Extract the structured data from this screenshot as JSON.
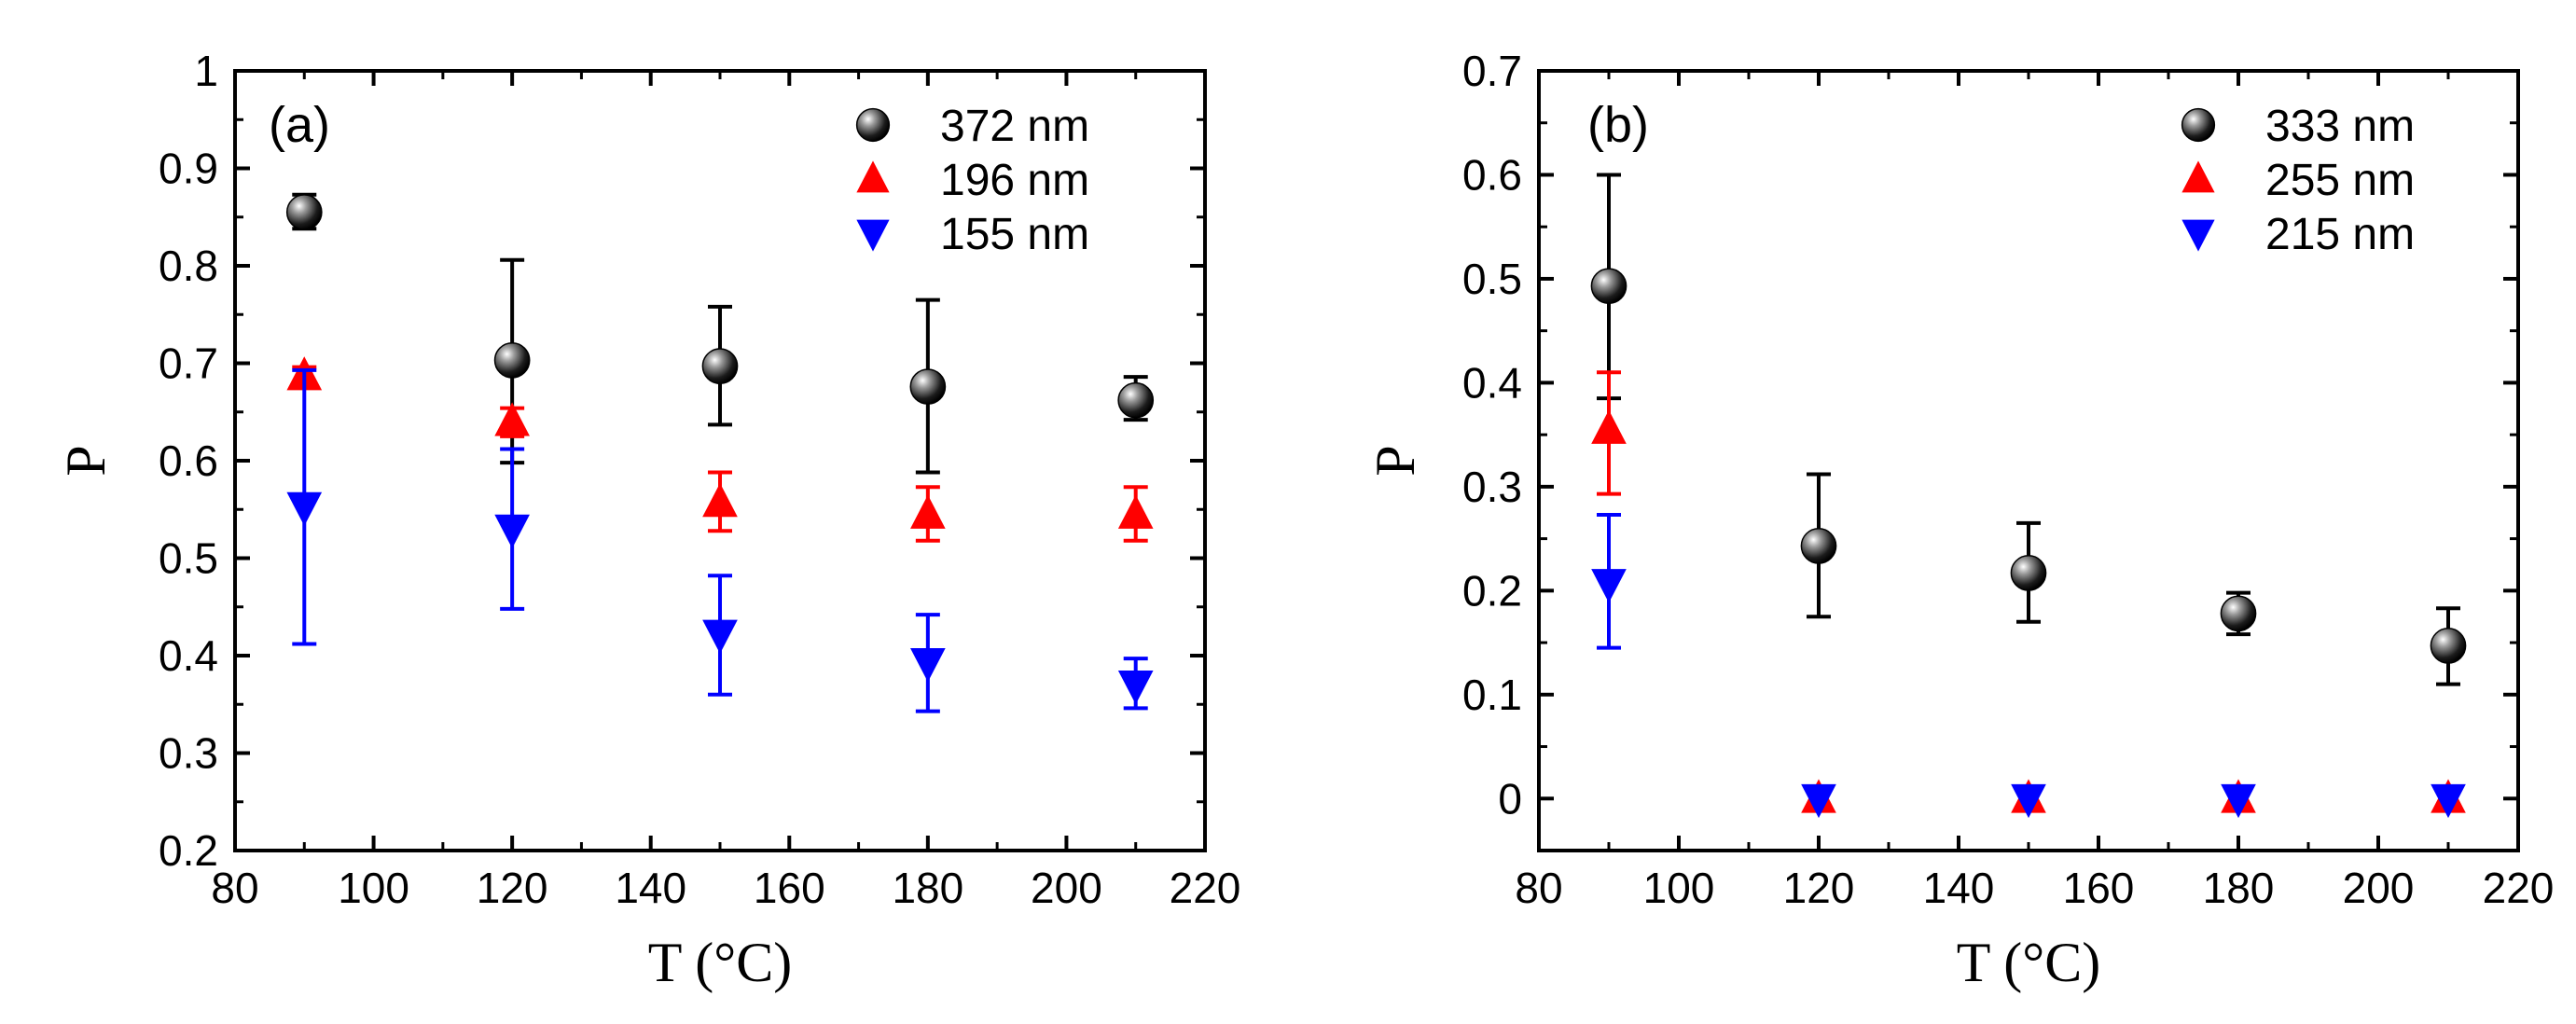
{
  "chart_data": [
    {
      "type": "scatter",
      "panel_label": "(a)",
      "xlabel": "T (°C)",
      "ylabel": "P",
      "xlim": [
        80,
        220
      ],
      "ylim": [
        0.2,
        1.0
      ],
      "xticks": [
        80,
        100,
        120,
        140,
        160,
        180,
        200,
        220
      ],
      "xtick_labels": [
        "80",
        "100",
        "120",
        "140",
        "160",
        "180",
        "200",
        "220"
      ],
      "yticks": [
        0.2,
        0.3,
        0.4,
        0.5,
        0.6,
        0.7,
        0.8,
        0.9,
        1.0
      ],
      "ytick_labels": [
        "0.2",
        "0.3",
        "0.4",
        "0.5",
        "0.6",
        "0.7",
        "0.8",
        "0.9",
        "1"
      ],
      "legend_position": "top-right",
      "series": [
        {
          "name": "372 nm",
          "marker": "sphere",
          "color": "#000000",
          "points": [
            {
              "x": 90,
              "y": 0.855,
              "lo": 0.838,
              "hi": 0.873
            },
            {
              "x": 120,
              "y": 0.703,
              "lo": 0.598,
              "hi": 0.806
            },
            {
              "x": 150,
              "y": 0.697,
              "lo": 0.637,
              "hi": 0.758
            },
            {
              "x": 180,
              "y": 0.676,
              "lo": 0.588,
              "hi": 0.765
            },
            {
              "x": 210,
              "y": 0.662,
              "lo": 0.642,
              "hi": 0.686
            }
          ]
        },
        {
          "name": "196 nm",
          "marker": "triangle-up",
          "color": "#ff0000",
          "points": [
            {
              "x": 90,
              "y": 0.687,
              "lo": 0.68,
              "hi": 0.696
            },
            {
              "x": 120,
              "y": 0.64,
              "lo": 0.625,
              "hi": 0.654
            },
            {
              "x": 150,
              "y": 0.557,
              "lo": 0.528,
              "hi": 0.588
            },
            {
              "x": 180,
              "y": 0.545,
              "lo": 0.518,
              "hi": 0.573
            },
            {
              "x": 210,
              "y": 0.545,
              "lo": 0.518,
              "hi": 0.573
            }
          ]
        },
        {
          "name": "155 nm",
          "marker": "triangle-down",
          "color": "#0000ff",
          "points": [
            {
              "x": 90,
              "y": 0.553,
              "lo": 0.412,
              "hi": 0.693
            },
            {
              "x": 120,
              "y": 0.53,
              "lo": 0.448,
              "hi": 0.612
            },
            {
              "x": 150,
              "y": 0.422,
              "lo": 0.36,
              "hi": 0.482
            },
            {
              "x": 180,
              "y": 0.393,
              "lo": 0.343,
              "hi": 0.442
            },
            {
              "x": 210,
              "y": 0.37,
              "lo": 0.346,
              "hi": 0.397
            }
          ]
        }
      ]
    },
    {
      "type": "scatter",
      "panel_label": "(b)",
      "xlabel": "T (°C)",
      "ylabel": "P",
      "xlim": [
        80,
        220
      ],
      "ylim": [
        -0.05,
        0.7
      ],
      "xticks": [
        80,
        100,
        120,
        140,
        160,
        180,
        200,
        220
      ],
      "xtick_labels": [
        "80",
        "100",
        "120",
        "140",
        "160",
        "180",
        "200",
        "220"
      ],
      "yticks": [
        0,
        0.1,
        0.2,
        0.3,
        0.4,
        0.5,
        0.6,
        0.7
      ],
      "ytick_labels": [
        "0",
        "0.1",
        "0.2",
        "0.3",
        "0.4",
        "0.5",
        "0.6",
        "0.7"
      ],
      "legend_position": "top-right",
      "series": [
        {
          "name": "333 nm",
          "marker": "sphere",
          "color": "#000000",
          "points": [
            {
              "x": 90,
              "y": 0.493,
              "lo": 0.385,
              "hi": 0.6
            },
            {
              "x": 120,
              "y": 0.243,
              "lo": 0.175,
              "hi": 0.312
            },
            {
              "x": 150,
              "y": 0.217,
              "lo": 0.17,
              "hi": 0.265
            },
            {
              "x": 180,
              "y": 0.178,
              "lo": 0.158,
              "hi": 0.198
            },
            {
              "x": 210,
              "y": 0.147,
              "lo": 0.11,
              "hi": 0.183
            }
          ]
        },
        {
          "name": "255 nm",
          "marker": "triangle-up",
          "color": "#ff0000",
          "points": [
            {
              "x": 90,
              "y": 0.355,
              "lo": 0.293,
              "hi": 0.41
            },
            {
              "x": 120,
              "y": 0.0
            },
            {
              "x": 150,
              "y": 0.0
            },
            {
              "x": 180,
              "y": 0.0
            },
            {
              "x": 210,
              "y": 0.0
            }
          ]
        },
        {
          "name": "215 nm",
          "marker": "triangle-down",
          "color": "#0000ff",
          "points": [
            {
              "x": 90,
              "y": 0.207,
              "lo": 0.145,
              "hi": 0.273
            },
            {
              "x": 120,
              "y": 0.0
            },
            {
              "x": 150,
              "y": 0.0
            },
            {
              "x": 180,
              "y": 0.0
            },
            {
              "x": 210,
              "y": 0.0
            }
          ]
        }
      ]
    }
  ]
}
